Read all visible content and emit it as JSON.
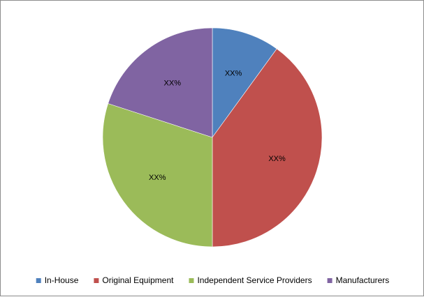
{
  "chart_data": {
    "type": "pie",
    "title": "",
    "categories": [
      "In-House",
      "Original Equipment",
      "Independent Service Providers",
      "Manufacturers"
    ],
    "values": [
      10,
      40,
      30,
      20
    ],
    "data_labels": [
      "XX%",
      "XX%",
      "XX%",
      "XX%"
    ],
    "colors": [
      "#4f81bd",
      "#c0504d",
      "#9bbb59",
      "#8064a2"
    ],
    "start_angle_deg": 0,
    "direction": "clockwise",
    "legend": {
      "position": "bottom",
      "entries": [
        "In-House",
        "Original Equipment",
        "Independent Service Providers",
        "Manufacturers"
      ]
    }
  }
}
